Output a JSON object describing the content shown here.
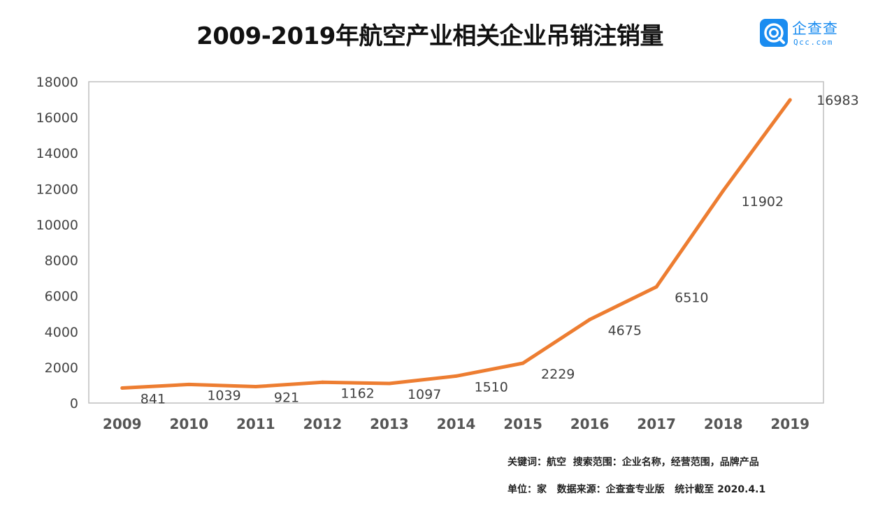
{
  "header": {
    "title": "2009-2019年航空产业相关企业吊销注销量"
  },
  "brand": {
    "name": "企查查",
    "domain": "Qcc.com",
    "icon": "qcc-logo-icon",
    "color": "#1a8cf0"
  },
  "footnotes": {
    "line1": "关键词：航空  搜索范围：企业名称，经营范围，品牌产品",
    "line2": "单位：家   数据来源：企查查专业版   统计截至 2020.4.1"
  },
  "chart_data": {
    "type": "line",
    "title": "2009-2019年航空产业相关企业吊销注销量",
    "xlabel": "",
    "ylabel": "",
    "categories": [
      "2009",
      "2010",
      "2011",
      "2012",
      "2013",
      "2014",
      "2015",
      "2016",
      "2017",
      "2018",
      "2019"
    ],
    "series": [
      {
        "values": [
          841,
          1039,
          921,
          1162,
          1097,
          1510,
          2229,
          4675,
          6510,
          11902,
          16983
        ],
        "color": "#ed7d31"
      }
    ],
    "ylim": [
      0,
      18000
    ],
    "yticks": [
      0,
      2000,
      4000,
      6000,
      8000,
      10000,
      12000,
      14000,
      16000,
      18000
    ],
    "grid": false,
    "legend": "none",
    "data_labels": true
  }
}
